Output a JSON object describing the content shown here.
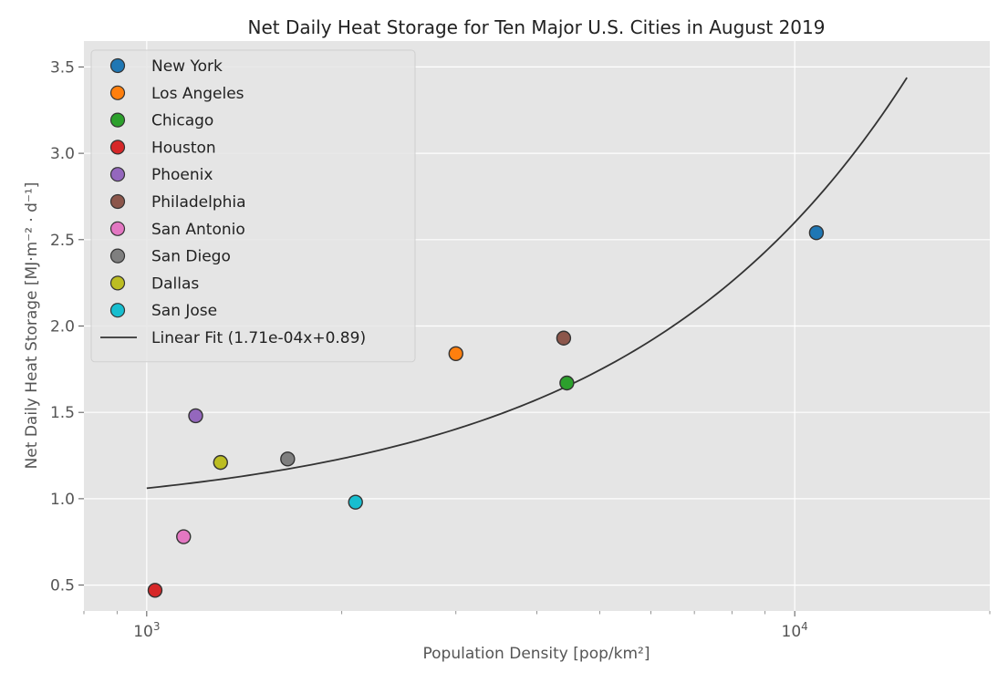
{
  "chart_data": {
    "type": "scatter",
    "title": "Net Daily Heat Storage for Ten Major U.S. Cities in August 2019",
    "xlabel": "Population Density [pop/km²]",
    "ylabel": "Net Daily Heat Storage [MJ·m⁻² · d⁻¹]",
    "x_scale": "log",
    "xlim": [
      800,
      20000
    ],
    "ylim": [
      0.35,
      3.65
    ],
    "x_ticks": [
      {
        "value": 1000,
        "base": "10",
        "exp": "3"
      },
      {
        "value": 10000,
        "base": "10",
        "exp": "4"
      }
    ],
    "y_ticks": [
      {
        "value": 0.5,
        "label": "0.5"
      },
      {
        "value": 1.0,
        "label": "1.0"
      },
      {
        "value": 1.5,
        "label": "1.5"
      },
      {
        "value": 2.0,
        "label": "2.0"
      },
      {
        "value": 2.5,
        "label": "2.5"
      },
      {
        "value": 3.0,
        "label": "3.0"
      },
      {
        "value": 3.5,
        "label": "3.5"
      }
    ],
    "grid": true,
    "legend_position": "top-left",
    "series": [
      {
        "name": "New York",
        "x": 10800,
        "y": 2.54,
        "color": "#1f77b4"
      },
      {
        "name": "Los Angeles",
        "x": 3000,
        "y": 1.84,
        "color": "#ff7f0e"
      },
      {
        "name": "Chicago",
        "x": 4450,
        "y": 1.67,
        "color": "#2ca02c"
      },
      {
        "name": "Houston",
        "x": 1030,
        "y": 0.47,
        "color": "#d62728"
      },
      {
        "name": "Phoenix",
        "x": 1190,
        "y": 1.48,
        "color": "#9467bd"
      },
      {
        "name": "Philadelphia",
        "x": 4400,
        "y": 1.93,
        "color": "#8c564b"
      },
      {
        "name": "San Antonio",
        "x": 1140,
        "y": 0.78,
        "color": "#e377c2"
      },
      {
        "name": "San Diego",
        "x": 1650,
        "y": 1.23,
        "color": "#7f7f7f"
      },
      {
        "name": "Dallas",
        "x": 1300,
        "y": 1.21,
        "color": "#bcbd22"
      },
      {
        "name": "San Jose",
        "x": 2100,
        "y": 0.98,
        "color": "#17becf"
      }
    ],
    "fit": {
      "name": "Linear Fit (1.71e-04x+0.89)",
      "slope": 0.000171,
      "intercept": 0.89,
      "x_range": [
        1000,
        14900
      ],
      "color": "#333333"
    }
  }
}
